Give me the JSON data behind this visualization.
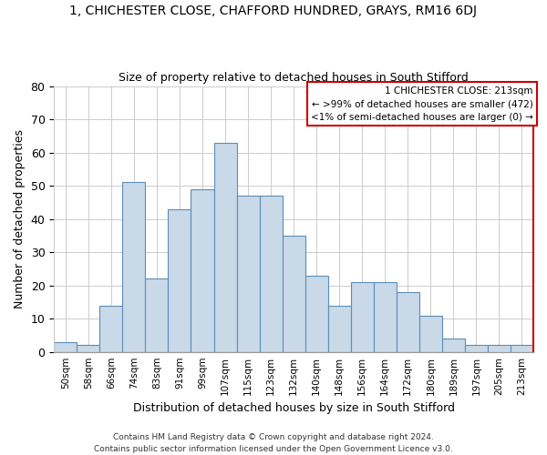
{
  "title_line1": "1, CHICHESTER CLOSE, CHAFFORD HUNDRED, GRAYS, RM16 6DJ",
  "title_line2": "Size of property relative to detached houses in South Stifford",
  "xlabel": "Distribution of detached houses by size in South Stifford",
  "ylabel": "Number of detached properties",
  "footer_line1": "Contains HM Land Registry data © Crown copyright and database right 2024.",
  "footer_line2": "Contains public sector information licensed under the Open Government Licence v3.0.",
  "bin_labels": [
    "50sqm",
    "58sqm",
    "66sqm",
    "74sqm",
    "83sqm",
    "91sqm",
    "99sqm",
    "107sqm",
    "115sqm",
    "123sqm",
    "132sqm",
    "140sqm",
    "148sqm",
    "156sqm",
    "164sqm",
    "172sqm",
    "180sqm",
    "189sqm",
    "197sqm",
    "205sqm",
    "213sqm"
  ],
  "bar_heights": [
    3,
    2,
    14,
    51,
    22,
    43,
    49,
    63,
    47,
    47,
    35,
    23,
    14,
    21,
    21,
    18,
    11,
    4,
    2,
    2,
    2
  ],
  "bar_color": "#c9d9e8",
  "bar_edge_color": "#5b8db8",
  "highlight_line_color": "#cc0000",
  "legend_title": "1 CHICHESTER CLOSE: 213sqm",
  "legend_line1": "← >99% of detached houses are smaller (472)",
  "legend_line2": "<1% of semi-detached houses are larger (0) →",
  "legend_box_color": "#cc0000",
  "ylim": [
    0,
    80
  ],
  "yticks": [
    0,
    10,
    20,
    30,
    40,
    50,
    60,
    70,
    80
  ]
}
